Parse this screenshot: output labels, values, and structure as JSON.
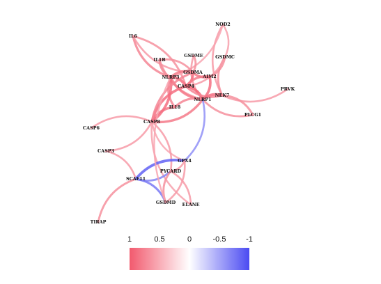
{
  "colors": {
    "positive": "#f25a6e",
    "negative": "#4b4bf2",
    "neutral": "#ffffff",
    "label": "#111111"
  },
  "nodes": [
    {
      "id": "NOD2",
      "label": "NOD2"
    },
    {
      "id": "IL6",
      "label": "IL6"
    },
    {
      "id": "IL1B",
      "label": "IL1B"
    },
    {
      "id": "GSDME",
      "label": "GSDME"
    },
    {
      "id": "GSDMC",
      "label": "GSDMC"
    },
    {
      "id": "GSDMA",
      "label": "GSDMA"
    },
    {
      "id": "NLRP3",
      "label": "NLRP3"
    },
    {
      "id": "AIM2",
      "label": "AIM2"
    },
    {
      "id": "CASP4",
      "label": "CASP4"
    },
    {
      "id": "NLRP1",
      "label": "NLRP1"
    },
    {
      "id": "NEK7",
      "label": "NEK7"
    },
    {
      "id": "PRVK",
      "label": "PRVK"
    },
    {
      "id": "IL18",
      "label": "IL18"
    },
    {
      "id": "PLCG1",
      "label": "PLCG1"
    },
    {
      "id": "CASP8",
      "label": "CASP8"
    },
    {
      "id": "CASP6",
      "label": "CASP6"
    },
    {
      "id": "CASP3",
      "label": "CASP3"
    },
    {
      "id": "GPX4",
      "label": "GPX4"
    },
    {
      "id": "PYCARD",
      "label": "PYCARD"
    },
    {
      "id": "SCAF11",
      "label": "SCAF11"
    },
    {
      "id": "GSDMD",
      "label": "GSDMD"
    },
    {
      "id": "ELANE",
      "label": "ELANE"
    },
    {
      "id": "TIRAP",
      "label": "TIRAP"
    }
  ],
  "edges": [
    {
      "source": "IL6",
      "target": "NLRP3",
      "weight": 0.6
    },
    {
      "source": "IL6",
      "target": "CASP4",
      "weight": 0.5
    },
    {
      "source": "IL6",
      "target": "GSDMA",
      "weight": 0.4
    },
    {
      "source": "NOD2",
      "target": "GSDMC",
      "weight": 0.35
    },
    {
      "source": "NOD2",
      "target": "NEK7",
      "weight": 0.4
    },
    {
      "source": "NOD2",
      "target": "NLRP3",
      "weight": 0.3
    },
    {
      "source": "IL1B",
      "target": "NLRP3",
      "weight": 0.6
    },
    {
      "source": "IL1B",
      "target": "GSDMA",
      "weight": 0.5
    },
    {
      "source": "IL1B",
      "target": "NLRP1",
      "weight": 0.5
    },
    {
      "source": "GSDME",
      "target": "GSDMA",
      "weight": 0.5
    },
    {
      "source": "GSDME",
      "target": "NLRP1",
      "weight": 0.4
    },
    {
      "source": "GSDMC",
      "target": "AIM2",
      "weight": 0.5
    },
    {
      "source": "GSDMC",
      "target": "NEK7",
      "weight": 0.5
    },
    {
      "source": "GSDMC",
      "target": "CASP4",
      "weight": 0.4
    },
    {
      "source": "GSDMA",
      "target": "AIM2",
      "weight": 0.7
    },
    {
      "source": "GSDMA",
      "target": "CASP4",
      "weight": 0.8
    },
    {
      "source": "GSDMA",
      "target": "NLRP3",
      "weight": 0.7
    },
    {
      "source": "NLRP3",
      "target": "CASP4",
      "weight": 0.8
    },
    {
      "source": "NLRP3",
      "target": "NLRP1",
      "weight": 0.7
    },
    {
      "source": "AIM2",
      "target": "NLRP1",
      "weight": 0.8
    },
    {
      "source": "AIM2",
      "target": "CASP4",
      "weight": 0.7
    },
    {
      "source": "CASP4",
      "target": "NLRP1",
      "weight": 0.9
    },
    {
      "source": "CASP4",
      "target": "NEK7",
      "weight": 0.6
    },
    {
      "source": "NLRP1",
      "target": "NEK7",
      "weight": 0.8
    },
    {
      "source": "NEK7",
      "target": "PRVK",
      "weight": 0.4
    },
    {
      "source": "NEK7",
      "target": "PLCG1",
      "weight": 0.5
    },
    {
      "source": "NLRP1",
      "target": "PLCG1",
      "weight": 0.5
    },
    {
      "source": "IL18",
      "target": "NLRP3",
      "weight": 0.6
    },
    {
      "source": "IL18",
      "target": "CASP8",
      "weight": 0.7
    },
    {
      "source": "IL18",
      "target": "NLRP1",
      "weight": 0.6
    },
    {
      "source": "CASP8",
      "target": "NLRP3",
      "weight": 0.8
    },
    {
      "source": "CASP8",
      "target": "CASP4",
      "weight": 0.8
    },
    {
      "source": "CASP8",
      "target": "NLRP1",
      "weight": 0.7
    },
    {
      "source": "CASP8",
      "target": "GSDMA",
      "weight": 0.6
    },
    {
      "source": "CASP8",
      "target": "CASP6",
      "weight": 0.4
    },
    {
      "source": "CASP8",
      "target": "CASP3",
      "weight": 0.4
    },
    {
      "source": "CASP8",
      "target": "GPX4",
      "weight": 0.3
    },
    {
      "source": "CASP8",
      "target": "PYCARD",
      "weight": 0.4
    },
    {
      "source": "CASP8",
      "target": "ELANE",
      "weight": 0.35
    },
    {
      "source": "CASP3",
      "target": "SCAF11",
      "weight": 0.4
    },
    {
      "source": "SCAF11",
      "target": "TIRAP",
      "weight": 0.5
    },
    {
      "source": "SCAF11",
      "target": "GPX4",
      "weight": -0.8
    },
    {
      "source": "SCAF11",
      "target": "PYCARD",
      "weight": -0.5
    },
    {
      "source": "SCAF11",
      "target": "GSDMD",
      "weight": -0.6
    },
    {
      "source": "GPX4",
      "target": "NLRP1",
      "weight": -0.4
    },
    {
      "source": "GPX4",
      "target": "PYCARD",
      "weight": 0.4
    },
    {
      "source": "PYCARD",
      "target": "GSDMD",
      "weight": 0.5
    },
    {
      "source": "PYCARD",
      "target": "ELANE",
      "weight": 0.4
    },
    {
      "source": "GSDMD",
      "target": "GPX4",
      "weight": 0.4
    },
    {
      "source": "GSDMD",
      "target": "NLRP3",
      "weight": 0.3
    }
  ],
  "legend": {
    "ticks": [
      "1",
      "0.5",
      "0",
      "-0.5",
      "-1"
    ],
    "range": [
      1,
      -1
    ]
  }
}
